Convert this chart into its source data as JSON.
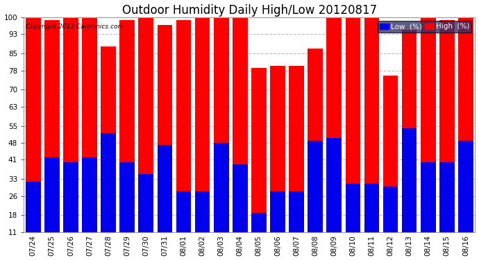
{
  "title": "Outdoor Humidity Daily High/Low 20120817",
  "copyright": "Copyright 2012 Cartronics.com",
  "categories": [
    "07/24",
    "07/25",
    "07/26",
    "07/27",
    "07/28",
    "07/29",
    "07/30",
    "07/31",
    "08/01",
    "08/02",
    "08/03",
    "08/04",
    "08/05",
    "08/06",
    "08/07",
    "08/08",
    "08/09",
    "08/10",
    "08/11",
    "08/12",
    "08/13",
    "08/14",
    "08/15",
    "08/16"
  ],
  "high_values": [
    100,
    99,
    100,
    100,
    88,
    99,
    100,
    97,
    99,
    100,
    100,
    100,
    79,
    80,
    80,
    87,
    100,
    100,
    100,
    76,
    95,
    100,
    99,
    100
  ],
  "low_values": [
    32,
    42,
    40,
    42,
    52,
    40,
    35,
    47,
    28,
    28,
    48,
    39,
    19,
    28,
    28,
    49,
    50,
    31,
    31,
    30,
    54,
    40,
    40,
    49
  ],
  "high_color": "#ff0000",
  "low_color": "#0000ee",
  "bg_color": "#ffffff",
  "plot_bg_color": "#ffffff",
  "grid_color": "#bbbbbb",
  "ylim": [
    11,
    100
  ],
  "yticks": [
    11,
    18,
    26,
    33,
    41,
    48,
    55,
    63,
    70,
    78,
    85,
    93,
    100
  ],
  "legend_low_label": "Low  (%)",
  "legend_high_label": "High  (%)",
  "title_fontsize": 12,
  "tick_fontsize": 7.5,
  "bar_width": 0.8,
  "legend_bg": "#333366",
  "legend_text_color": "white"
}
